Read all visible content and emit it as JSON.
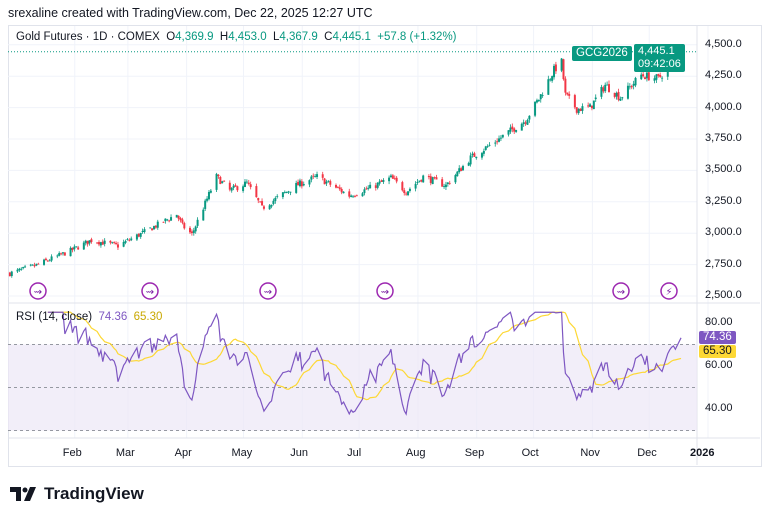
{
  "credit": "srexaline created with TradingView.com, Dec 22, 2025 12:27 UTC",
  "legend": {
    "symbol": "Gold Futures · 1D · COMEX",
    "o_label": "O",
    "o": "4,369.9",
    "h_label": "H",
    "h": "4,453.0",
    "l_label": "L",
    "l": "4,367.9",
    "c_label": "C",
    "c": "4,445.1",
    "change": "+57.8 (+1.32%)"
  },
  "price_badge": {
    "ticker": "GCG2026",
    "price": "4,445.1",
    "countdown": "09:42:06"
  },
  "rsi": {
    "label": "RSI (14, close)",
    "value": "74.36",
    "ma_value": "65.30"
  },
  "colors": {
    "up": "#089981",
    "down": "#f23645",
    "rsi": "#7e57c2",
    "rsi_ma": "#fdd835",
    "band": "#ede7f6"
  },
  "branding": "TradingView",
  "events": [
    "dividend-arrow-icon",
    "dividend-arrow-icon",
    "dividend-arrow-icon",
    "dividend-arrow-icon",
    "dividend-arrow-icon",
    "lightning-icon"
  ],
  "chart_data": [
    {
      "type": "candlestick",
      "title": "Gold Futures · 1D · COMEX",
      "ylim": [
        2500,
        4500
      ],
      "y_ticks": [
        "4,500.0",
        "4,250.0",
        "4,000.0",
        "3,750.0",
        "3,500.0",
        "3,250.0",
        "3,000.0",
        "2,750.0",
        "2,500.0"
      ],
      "x_ticks": [
        "Feb",
        "Mar",
        "Apr",
        "May",
        "Jun",
        "Jul",
        "Aug",
        "Sep",
        "Oct",
        "Nov",
        "Dec",
        "2026"
      ],
      "approx_closes": [
        [
          "2025-01-02",
          2680
        ],
        [
          "2025-01-15",
          2740
        ],
        [
          "2025-02-03",
          2860
        ],
        [
          "2025-02-14",
          2945
        ],
        [
          "2025-02-28",
          2900
        ],
        [
          "2025-03-14",
          3010
        ],
        [
          "2025-03-31",
          3150
        ],
        [
          "2025-04-03",
          3060
        ],
        [
          "2025-04-08",
          2990
        ],
        [
          "2025-04-21",
          3450
        ],
        [
          "2025-04-28",
          3340
        ],
        [
          "2025-05-07",
          3400
        ],
        [
          "2025-05-15",
          3200
        ],
        [
          "2025-06-02",
          3380
        ],
        [
          "2025-06-13",
          3450
        ],
        [
          "2025-06-30",
          3300
        ],
        [
          "2025-07-11",
          3360
        ],
        [
          "2025-07-22",
          3440
        ],
        [
          "2025-07-30",
          3330
        ],
        [
          "2025-08-08",
          3450
        ],
        [
          "2025-08-20",
          3380
        ],
        [
          "2025-09-02",
          3600
        ],
        [
          "2025-09-16",
          3740
        ],
        [
          "2025-10-01",
          3900
        ],
        [
          "2025-10-08",
          4070
        ],
        [
          "2025-10-16",
          4300
        ],
        [
          "2025-10-20",
          4360
        ],
        [
          "2025-10-22",
          4100
        ],
        [
          "2025-10-28",
          3990
        ],
        [
          "2025-11-04",
          4000
        ],
        [
          "2025-11-12",
          4180
        ],
        [
          "2025-11-20",
          4080
        ],
        [
          "2025-12-01",
          4260
        ],
        [
          "2025-12-10",
          4230
        ],
        [
          "2025-12-22",
          4445.1
        ]
      ]
    },
    {
      "type": "line",
      "title": "RSI (14, close)",
      "ylim": [
        25,
        85
      ],
      "y_ticks": [
        "80.00",
        "60.00",
        "40.00"
      ],
      "bands": [
        30,
        50,
        70
      ],
      "series": [
        {
          "name": "RSI",
          "last": 74.36
        },
        {
          "name": "RSI MA",
          "last": 65.3
        }
      ]
    }
  ]
}
